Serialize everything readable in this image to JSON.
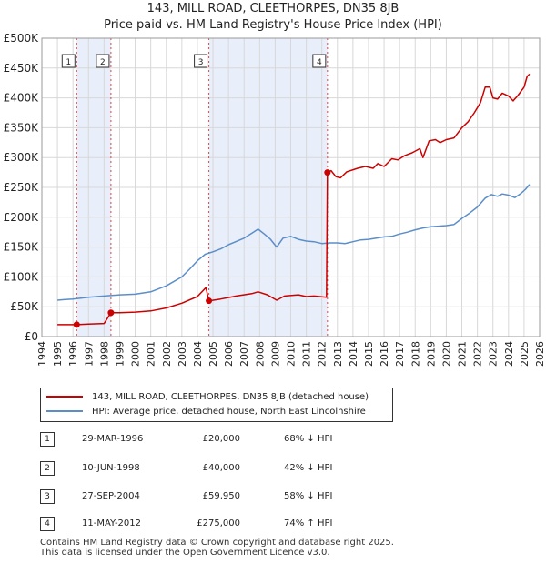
{
  "chart_data": {
    "type": "line",
    "title": "143, MILL ROAD, CLEETHORPES, DN35 8JB",
    "subtitle": "Price paid vs. HM Land Registry's House Price Index (HPI)",
    "xlim": [
      1994,
      2026
    ],
    "ylim": [
      0,
      500000
    ],
    "x_ticks": [
      1994,
      1995,
      1996,
      1997,
      1998,
      1999,
      2000,
      2001,
      2002,
      2003,
      2004,
      2005,
      2006,
      2007,
      2008,
      2009,
      2010,
      2011,
      2012,
      2013,
      2014,
      2015,
      2016,
      2017,
      2018,
      2019,
      2020,
      2021,
      2022,
      2023,
      2024,
      2025,
      2026
    ],
    "y_ticks": [
      {
        "value": 0,
        "label": "£0"
      },
      {
        "value": 50000,
        "label": "£50K"
      },
      {
        "value": 100000,
        "label": "£100K"
      },
      {
        "value": 150000,
        "label": "£150K"
      },
      {
        "value": 200000,
        "label": "£200K"
      },
      {
        "value": 250000,
        "label": "£250K"
      },
      {
        "value": 300000,
        "label": "£300K"
      },
      {
        "value": 350000,
        "label": "£350K"
      },
      {
        "value": 400000,
        "label": "£400K"
      },
      {
        "value": 450000,
        "label": "£450K"
      },
      {
        "value": 500000,
        "label": "£500K"
      }
    ],
    "shaded_ranges": [
      [
        1996.24,
        1998.44
      ],
      [
        2004.74,
        2012.36
      ]
    ],
    "series": [
      {
        "name": "143, MILL ROAD, CLEETHORPES, DN35 8JB (detached house)",
        "color": "#cc0000",
        "points": [
          [
            1995.0,
            20000
          ],
          [
            1996.24,
            20000
          ],
          [
            1997.0,
            21000
          ],
          [
            1998.0,
            22000
          ],
          [
            1998.44,
            40000
          ],
          [
            1999.0,
            40000
          ],
          [
            2000.0,
            41000
          ],
          [
            2001.0,
            43000
          ],
          [
            2002.0,
            48000
          ],
          [
            2003.0,
            56000
          ],
          [
            2004.0,
            67000
          ],
          [
            2004.55,
            82000
          ],
          [
            2004.74,
            59950
          ],
          [
            2005.5,
            63000
          ],
          [
            2006.5,
            68000
          ],
          [
            2007.5,
            72000
          ],
          [
            2007.9,
            75000
          ],
          [
            2008.5,
            70000
          ],
          [
            2009.1,
            61000
          ],
          [
            2009.6,
            68000
          ],
          [
            2010.5,
            70000
          ],
          [
            2011.0,
            67000
          ],
          [
            2011.5,
            68000
          ],
          [
            2012.3,
            66000
          ],
          [
            2012.36,
            275000
          ],
          [
            2012.6,
            278000
          ],
          [
            2012.9,
            268000
          ],
          [
            2013.2,
            266000
          ],
          [
            2013.6,
            276000
          ],
          [
            2014.3,
            282000
          ],
          [
            2014.8,
            285000
          ],
          [
            2015.3,
            282000
          ],
          [
            2015.6,
            290000
          ],
          [
            2016.0,
            285000
          ],
          [
            2016.5,
            298000
          ],
          [
            2016.9,
            296000
          ],
          [
            2017.3,
            303000
          ],
          [
            2017.8,
            308000
          ],
          [
            2018.3,
            315000
          ],
          [
            2018.5,
            300000
          ],
          [
            2018.9,
            328000
          ],
          [
            2019.3,
            330000
          ],
          [
            2019.6,
            325000
          ],
          [
            2020.0,
            330000
          ],
          [
            2020.5,
            333000
          ],
          [
            2021.0,
            350000
          ],
          [
            2021.4,
            360000
          ],
          [
            2021.8,
            375000
          ],
          [
            2022.2,
            392000
          ],
          [
            2022.5,
            418000
          ],
          [
            2022.8,
            418000
          ],
          [
            2023.0,
            400000
          ],
          [
            2023.3,
            398000
          ],
          [
            2023.6,
            408000
          ],
          [
            2024.0,
            403000
          ],
          [
            2024.3,
            395000
          ],
          [
            2024.6,
            404000
          ],
          [
            2025.0,
            418000
          ],
          [
            2025.2,
            436000
          ],
          [
            2025.35,
            440000
          ]
        ]
      },
      {
        "name": "HPI: Average price, detached house, North East Lincolnshire",
        "color": "#5b8ec9",
        "points": [
          [
            1995.0,
            61000
          ],
          [
            1995.5,
            62000
          ],
          [
            1996.0,
            63000
          ],
          [
            1997.0,
            66000
          ],
          [
            1998.0,
            68000
          ],
          [
            1999.0,
            70000
          ],
          [
            2000.0,
            71000
          ],
          [
            2001.0,
            75000
          ],
          [
            2002.0,
            85000
          ],
          [
            2003.0,
            100000
          ],
          [
            2003.5,
            113000
          ],
          [
            2004.0,
            127000
          ],
          [
            2004.5,
            138000
          ],
          [
            2005.0,
            142000
          ],
          [
            2005.5,
            147000
          ],
          [
            2006.0,
            154000
          ],
          [
            2007.0,
            165000
          ],
          [
            2007.6,
            175000
          ],
          [
            2007.9,
            180000
          ],
          [
            2008.3,
            172000
          ],
          [
            2008.7,
            163000
          ],
          [
            2009.1,
            150000
          ],
          [
            2009.5,
            165000
          ],
          [
            2010.0,
            168000
          ],
          [
            2010.5,
            163000
          ],
          [
            2011.0,
            160000
          ],
          [
            2011.5,
            159000
          ],
          [
            2012.0,
            156000
          ],
          [
            2012.5,
            157000
          ],
          [
            2013.0,
            157000
          ],
          [
            2013.5,
            156000
          ],
          [
            2014.0,
            159000
          ],
          [
            2014.5,
            162000
          ],
          [
            2015.0,
            163000
          ],
          [
            2015.5,
            165000
          ],
          [
            2016.0,
            167000
          ],
          [
            2016.5,
            168000
          ],
          [
            2017.0,
            172000
          ],
          [
            2017.5,
            175000
          ],
          [
            2018.0,
            179000
          ],
          [
            2018.5,
            182000
          ],
          [
            2019.0,
            184000
          ],
          [
            2019.5,
            185000
          ],
          [
            2020.0,
            186000
          ],
          [
            2020.5,
            188000
          ],
          [
            2021.0,
            198000
          ],
          [
            2021.5,
            207000
          ],
          [
            2022.0,
            217000
          ],
          [
            2022.5,
            232000
          ],
          [
            2022.9,
            238000
          ],
          [
            2023.3,
            235000
          ],
          [
            2023.6,
            239000
          ],
          [
            2024.0,
            237000
          ],
          [
            2024.4,
            233000
          ],
          [
            2024.8,
            240000
          ],
          [
            2025.1,
            247000
          ],
          [
            2025.35,
            255000
          ]
        ]
      }
    ],
    "transactions": [
      {
        "n": "1",
        "x": 1996.24,
        "price": 20000,
        "date": "29-MAR-1996",
        "price_label": "£20,000",
        "hpi": "68% ↓ HPI"
      },
      {
        "n": "2",
        "x": 1998.44,
        "price": 40000,
        "date": "10-JUN-1998",
        "price_label": "£40,000",
        "hpi": "42% ↓ HPI"
      },
      {
        "n": "3",
        "x": 2004.74,
        "price": 59950,
        "date": "27-SEP-2004",
        "price_label": "£59,950",
        "hpi": "58% ↓ HPI"
      },
      {
        "n": "4",
        "x": 2012.36,
        "price": 275000,
        "date": "11-MAY-2012",
        "price_label": "£275,000",
        "hpi": "74% ↑ HPI"
      }
    ]
  },
  "legend": {
    "red_label": "143, MILL ROAD, CLEETHORPES, DN35 8JB (detached house)",
    "blue_label": "HPI: Average price, detached house, North East Lincolnshire"
  },
  "footer": {
    "line1": "Contains HM Land Registry data © Crown copyright and database right 2025.",
    "line2": "This data is licensed under the Open Government Licence v3.0."
  }
}
